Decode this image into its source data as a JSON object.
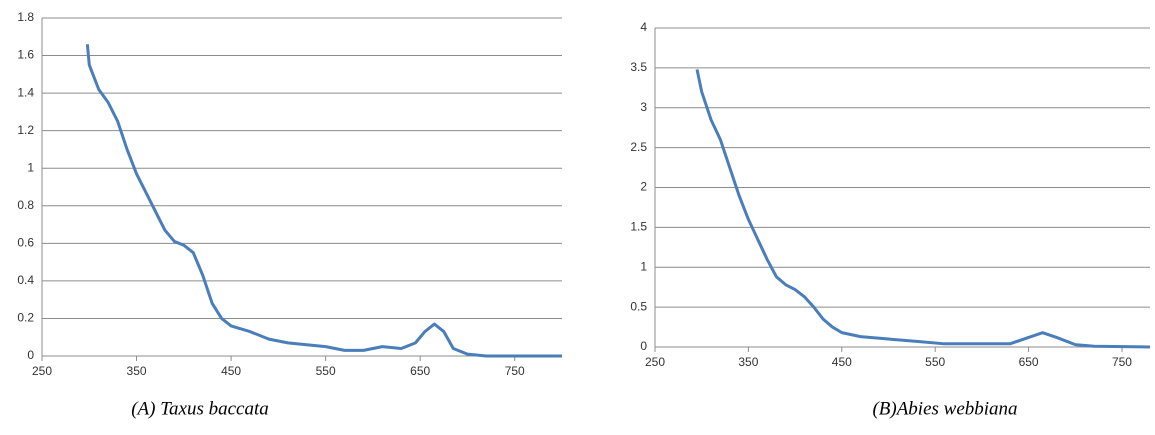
{
  "chart_data": [
    {
      "type": "line",
      "title": "(A)  Taxus baccata",
      "x": [
        298,
        300,
        310,
        320,
        330,
        340,
        350,
        360,
        370,
        380,
        390,
        400,
        410,
        420,
        430,
        440,
        450,
        470,
        490,
        510,
        530,
        550,
        570,
        590,
        610,
        630,
        645,
        655,
        665,
        675,
        685,
        700,
        720,
        800
      ],
      "series": [
        {
          "color": "#4a7ebb",
          "values": [
            1.66,
            1.55,
            1.42,
            1.35,
            1.25,
            1.1,
            0.97,
            0.87,
            0.77,
            0.67,
            0.61,
            0.59,
            0.55,
            0.43,
            0.28,
            0.2,
            0.16,
            0.13,
            0.09,
            0.07,
            0.06,
            0.05,
            0.03,
            0.03,
            0.05,
            0.04,
            0.07,
            0.13,
            0.17,
            0.13,
            0.04,
            0.01,
            0,
            0
          ]
        }
      ],
      "xlim": [
        250,
        800
      ],
      "xticks": [
        250,
        350,
        450,
        550,
        650,
        750
      ],
      "ylim": [
        0,
        1.8
      ],
      "yticks": [
        0,
        0.2,
        0.4,
        0.6,
        0.8,
        1,
        1.2,
        1.4,
        1.6,
        1.8
      ],
      "grid": true
    },
    {
      "type": "line",
      "title": "(B)Abies webbiana",
      "x": [
        295,
        300,
        310,
        320,
        330,
        340,
        350,
        360,
        370,
        380,
        390,
        400,
        410,
        420,
        430,
        440,
        450,
        470,
        500,
        530,
        560,
        600,
        630,
        650,
        665,
        680,
        700,
        720,
        780
      ],
      "series": [
        {
          "color": "#4a7ebb",
          "values": [
            3.48,
            3.2,
            2.85,
            2.6,
            2.25,
            1.9,
            1.6,
            1.35,
            1.1,
            0.88,
            0.78,
            0.72,
            0.63,
            0.5,
            0.35,
            0.25,
            0.18,
            0.13,
            0.1,
            0.07,
            0.04,
            0.04,
            0.04,
            0.12,
            0.18,
            0.12,
            0.03,
            0.01,
            0
          ]
        }
      ],
      "xlim": [
        250,
        780
      ],
      "xticks": [
        250,
        350,
        450,
        550,
        650,
        750
      ],
      "ylim": [
        0,
        4
      ],
      "yticks": [
        0,
        0.5,
        1,
        1.5,
        2,
        2.5,
        3,
        3.5,
        4
      ],
      "grid": true
    }
  ]
}
